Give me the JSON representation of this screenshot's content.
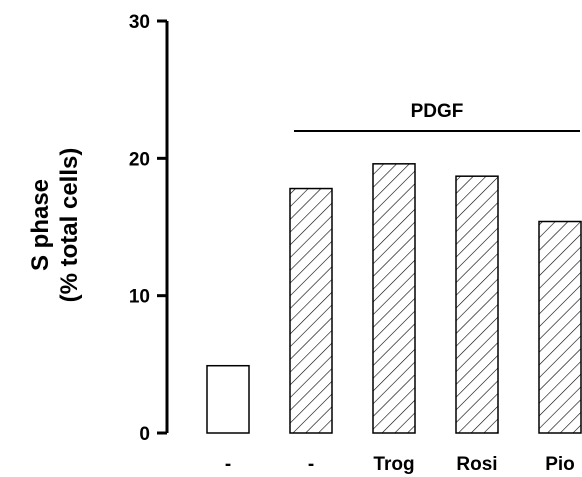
{
  "chart_data": {
    "type": "bar",
    "categories": [
      "-",
      "-",
      "Trog",
      "Rosi",
      "Pio"
    ],
    "values": [
      4.9,
      17.8,
      19.6,
      18.7,
      15.4
    ],
    "patterns": [
      "none",
      "hatch",
      "hatch",
      "hatch",
      "hatch"
    ],
    "ylabel_line1": "S phase",
    "ylabel_line2": "(% total cells)",
    "ylim": [
      0,
      30
    ],
    "yticks": [
      "0",
      "10",
      "20",
      "30"
    ],
    "group": {
      "label": "PDGF",
      "categories": [
        "-",
        "Trog",
        "Rosi",
        "Pio"
      ]
    },
    "grid": false,
    "legend": "none"
  },
  "colors": {
    "bar_fill": "#ffffff",
    "bar_stroke": "#000000",
    "hatch": "#000000",
    "axis": "#000000"
  }
}
